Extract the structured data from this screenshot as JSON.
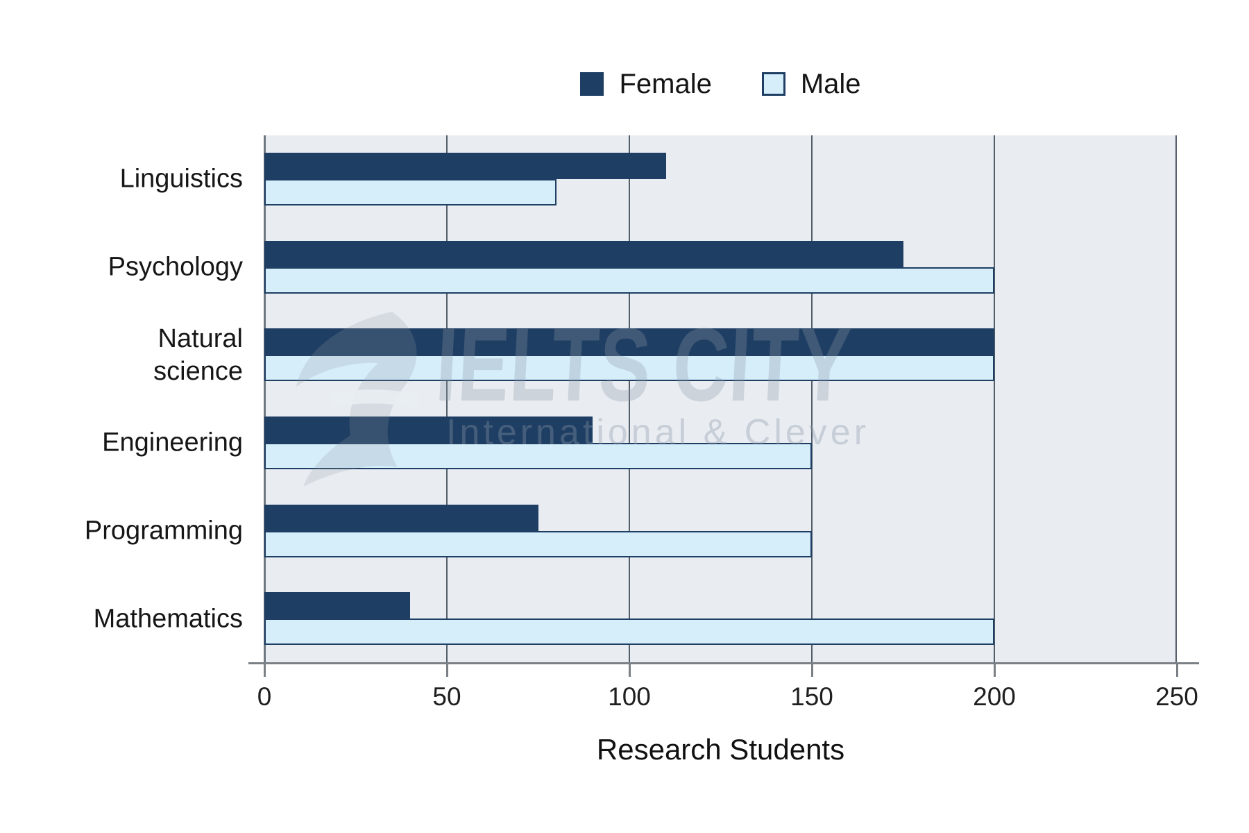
{
  "watermark": {
    "title": "IELTS CITY",
    "subtitle": "International & Clever"
  },
  "chart_data": {
    "type": "bar",
    "orientation": "horizontal",
    "xlabel": "Research Students",
    "categories": [
      "Linguistics",
      "Psychology",
      "Natural science",
      "Engineering",
      "Programming",
      "Mathematics"
    ],
    "categories_display": [
      [
        "Linguistics"
      ],
      [
        "Psychology"
      ],
      [
        "Natural",
        "science"
      ],
      [
        "Engineering"
      ],
      [
        "Programming"
      ],
      [
        "Mathematics"
      ]
    ],
    "series": [
      {
        "name": "Female",
        "color": "#1F3E63",
        "values": [
          110,
          175,
          200,
          90,
          75,
          40
        ]
      },
      {
        "name": "Male",
        "color": "#D6EEFA",
        "border_color": "#1F3E63",
        "values": [
          80,
          200,
          200,
          150,
          150,
          200
        ]
      }
    ],
    "xlim": [
      0,
      250
    ],
    "x_ticks": [
      0,
      50,
      100,
      150,
      200,
      250
    ],
    "grid": "vertical",
    "legend_position": "top-center",
    "colors": {
      "plot_bg": "#E9EDF2",
      "gridline": "#525E6A",
      "axis": "#7A8086",
      "text": "#161616",
      "watermark": "#8B99A6"
    }
  }
}
